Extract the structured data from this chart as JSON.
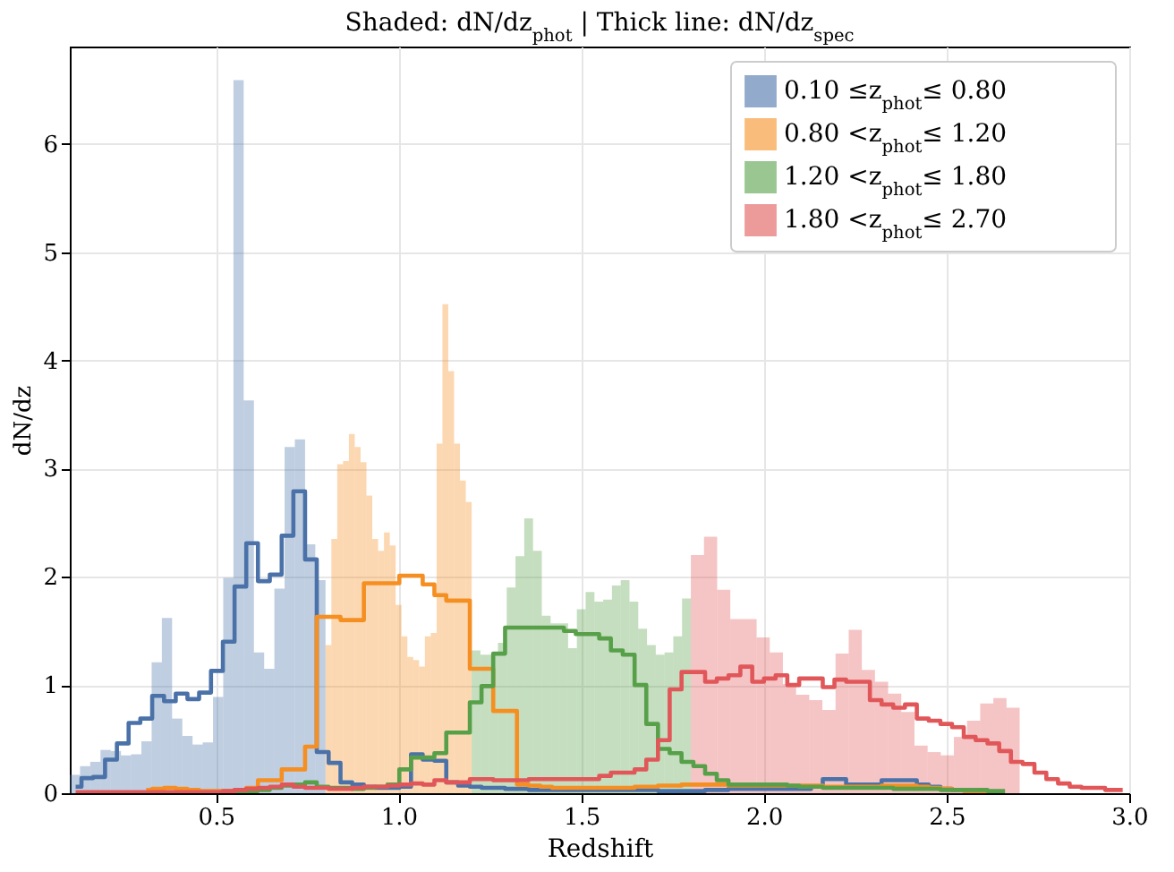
{
  "chart_data": {
    "type": "histogram",
    "title": "Shaded: dN/dz$_{phot}$   |   Thick line: dN/dz$_{spec}$",
    "xlabel": "Redshift",
    "ylabel": "dN/dz",
    "xlim": [
      0.1,
      3.0
    ],
    "xticks": [
      0.5,
      {
        "value": 1,
        "label": "1.0"
      },
      1.5,
      {
        "value": 2,
        "label": "2.0"
      },
      2.5,
      {
        "value": 3,
        "label": "3.0"
      }
    ],
    "ylim": [
      0,
      6.9
    ],
    "yticks": [
      0,
      1,
      2,
      3,
      4,
      5,
      6
    ],
    "grid": true,
    "legend": "top right",
    "x": [
      0.116,
      0.148,
      0.18,
      0.213,
      0.245,
      0.277,
      0.309,
      0.342,
      0.374,
      0.406,
      0.438,
      0.47,
      0.503,
      0.535,
      0.567,
      0.599,
      0.631,
      0.664,
      0.696,
      0.728,
      0.76,
      0.792,
      0.825,
      0.857,
      0.889,
      0.921,
      0.953,
      0.986,
      1.018,
      1.05,
      1.082,
      1.114,
      1.147,
      1.179,
      1.211,
      1.243,
      1.275,
      1.308,
      1.34,
      1.372,
      1.404,
      1.436,
      1.469,
      1.501,
      1.533,
      1.565,
      1.597,
      1.63,
      1.662,
      1.694,
      1.726,
      1.758,
      1.791,
      1.823,
      1.855,
      1.887,
      1.919,
      1.952,
      1.984,
      2.016,
      2.048,
      2.08,
      2.113,
      2.145,
      2.177,
      2.209,
      2.241,
      2.274,
      2.306,
      2.338,
      2.37,
      2.402,
      2.435,
      2.467,
      2.499,
      2.531,
      2.563,
      2.596,
      2.628,
      2.66,
      2.692,
      2.724,
      2.757,
      2.789,
      2.821,
      2.853,
      2.885,
      2.918,
      2.95,
      2.982
    ],
    "series": [
      {
        "name": "0.10 ≤z$_{phot}$≤ 0.80",
        "color": "#4a72a8",
        "bins": [
          0.1,
          0.128,
          0.156,
          0.184,
          0.212,
          0.24,
          0.268,
          0.296,
          0.324,
          0.352,
          0.38,
          0.408,
          0.436,
          0.464,
          0.492,
          0.52,
          0.548,
          0.576,
          0.604,
          0.632,
          0.66,
          0.688,
          0.716,
          0.744,
          0.772,
          0.8
        ],
        "values": [
          0.17,
          0.25,
          0.29,
          0.4,
          0.39,
          0.35,
          0.36,
          0.48,
          1.21,
          1.62,
          0.69,
          0.53,
          0.45,
          0.47,
          0.89,
          1.99,
          6.59,
          3.63,
          1.3,
          1.15,
          1.89,
          3.2,
          3.27,
          2.3,
          1.97
        ]
      },
      {
        "name": "0.80 <z$_{phot}$≤ 1.20",
        "color": "#f58f22",
        "bins": [
          0.8,
          0.816,
          0.832,
          0.848,
          0.864,
          0.88,
          0.896,
          0.912,
          0.928,
          0.944,
          0.96,
          0.976,
          0.992,
          1.008,
          1.024,
          1.04,
          1.056,
          1.072,
          1.088,
          1.104,
          1.12,
          1.136,
          1.152,
          1.168,
          1.184,
          1.2
        ],
        "values": [
          1.37,
          2.35,
          3.04,
          3.07,
          3.32,
          3.2,
          3.06,
          2.75,
          2.35,
          2.24,
          2.41,
          2.29,
          1.74,
          1.45,
          1.26,
          1.23,
          1.17,
          1.45,
          1.48,
          3.23,
          4.52,
          3.9,
          3.23,
          2.89,
          2.69
        ]
      },
      {
        "name": "1.20 <z$_{phot}$≤ 1.80",
        "color": "#57a049",
        "bins": [
          1.2,
          1.224,
          1.248,
          1.272,
          1.296,
          1.32,
          1.344,
          1.368,
          1.392,
          1.416,
          1.44,
          1.464,
          1.488,
          1.512,
          1.536,
          1.56,
          1.584,
          1.608,
          1.632,
          1.656,
          1.68,
          1.704,
          1.728,
          1.752,
          1.776,
          1.8
        ],
        "values": [
          1.32,
          1.28,
          1.28,
          1.39,
          1.9,
          2.19,
          2.54,
          2.24,
          1.64,
          1.57,
          1.57,
          1.34,
          1.7,
          1.86,
          1.77,
          1.79,
          1.92,
          1.97,
          1.77,
          1.52,
          1.37,
          1.28,
          1.3,
          1.45,
          1.8
        ]
      },
      {
        "name": "1.80 <z$_{phot}$≤ 2.70",
        "color": "#e15759",
        "bins": [
          1.8,
          1.836,
          1.872,
          1.908,
          1.944,
          1.98,
          2.016,
          2.052,
          2.088,
          2.124,
          2.16,
          2.196,
          2.232,
          2.268,
          2.304,
          2.34,
          2.376,
          2.412,
          2.448,
          2.484,
          2.52,
          2.556,
          2.592,
          2.628,
          2.664,
          2.7
        ],
        "values": [
          2.2,
          2.37,
          1.88,
          1.61,
          1.61,
          1.44,
          1.3,
          1.01,
          0.91,
          0.86,
          0.77,
          1.29,
          1.51,
          1.14,
          1.03,
          0.92,
          0.75,
          0.44,
          0.38,
          0.35,
          0.52,
          0.67,
          0.83,
          0.88,
          0.79
        ]
      },
      {
        "type": "step",
        "color": "#4a72a8",
        "values": [
          0.06,
          0.14,
          0.15,
          0.31,
          0.46,
          0.65,
          0.69,
          0.9,
          0.85,
          0.92,
          0.87,
          0.93,
          1.13,
          1.4,
          1.91,
          2.31,
          1.96,
          2.02,
          2.38,
          2.79,
          2.16,
          0.38,
          0.28,
          0.1,
          0.08,
          0.06,
          0.05,
          0.05,
          0.06,
          0.36,
          0.31,
          0.3,
          0.1,
          0.07,
          0.06,
          0.05,
          0.05,
          0.04,
          0.04,
          0.03,
          0.03,
          0.03,
          0.03,
          0.03,
          0.03,
          0.03,
          0.03,
          0.03,
          0.03,
          0.03,
          0.02,
          0.02,
          0.02,
          0.02,
          0.03,
          0.03,
          0.04,
          0.04,
          0.04,
          0.04,
          0.04,
          0.04,
          0.04,
          0.06,
          0.13,
          0.13,
          0.08,
          0.08,
          0.08,
          0.12,
          0.12,
          0.12,
          0.08,
          0.06,
          0.04,
          0.03,
          null,
          null,
          null,
          null,
          null,
          null,
          null,
          null,
          null,
          null,
          null,
          null,
          null,
          null
        ]
      },
      {
        "type": "step",
        "color": "#f58f22",
        "values": [
          null,
          null,
          null,
          null,
          null,
          null,
          0.03,
          0.04,
          0.05,
          0.04,
          0.03,
          0.02,
          0.02,
          0.02,
          0.03,
          0.05,
          0.12,
          0.12,
          0.22,
          0.22,
          0.43,
          1.63,
          1.63,
          1.6,
          1.6,
          1.94,
          1.94,
          1.94,
          2.01,
          2.01,
          1.93,
          1.83,
          1.78,
          1.78,
          1.15,
          1.15,
          0.76,
          0.76,
          0.08,
          0.07,
          0.06,
          0.05,
          0.05,
          0.05,
          0.05,
          0.05,
          0.05,
          0.05,
          0.06,
          0.06,
          0.07,
          0.07,
          0.08,
          0.08,
          0.08,
          0.08,
          0.07,
          0.07,
          0.07,
          0.07,
          0.07,
          0.07,
          0.07,
          0.07,
          0.06,
          0.06,
          0.06,
          0.06,
          0.06,
          0.07,
          0.07,
          0.07,
          0.06,
          0.05,
          0.04,
          0.03,
          0.02,
          0.02,
          0.01,
          null,
          null,
          null,
          null,
          null,
          null,
          null,
          null,
          null,
          null,
          null
        ]
      },
      {
        "type": "step",
        "color": "#57a049",
        "values": [
          null,
          null,
          null,
          null,
          null,
          null,
          null,
          null,
          null,
          null,
          null,
          null,
          null,
          0.01,
          0.01,
          0.02,
          0.03,
          0.05,
          0.07,
          0.08,
          0.1,
          0.06,
          0.05,
          0.05,
          0.04,
          0.05,
          0.06,
          0.08,
          0.22,
          0.33,
          0.33,
          0.37,
          0.56,
          0.56,
          0.84,
          0.99,
          1.29,
          1.53,
          1.53,
          1.53,
          1.53,
          1.53,
          1.5,
          1.47,
          1.47,
          1.43,
          1.32,
          1.28,
          1.0,
          0.64,
          0.41,
          0.37,
          0.29,
          0.25,
          0.18,
          0.12,
          0.08,
          0.08,
          0.08,
          0.08,
          0.08,
          0.07,
          0.06,
          0.06,
          0.05,
          0.05,
          0.05,
          0.05,
          0.05,
          0.05,
          0.04,
          0.04,
          0.04,
          0.04,
          0.03,
          0.03,
          0.03,
          0.03,
          0.02,
          0.02,
          null,
          null,
          null,
          null,
          null,
          null,
          null,
          null,
          null,
          null
        ]
      },
      {
        "type": "step",
        "color": "#e15759",
        "values": [
          0.01,
          0.01,
          0.01,
          0.01,
          0.01,
          0.01,
          0.01,
          0.01,
          0.01,
          0.01,
          0.01,
          0.01,
          0.01,
          0.02,
          0.03,
          0.04,
          0.05,
          0.06,
          0.08,
          0.06,
          0.05,
          0.05,
          0.04,
          0.04,
          0.05,
          0.06,
          0.06,
          0.07,
          0.08,
          0.09,
          0.08,
          0.12,
          0.1,
          0.1,
          0.13,
          0.13,
          0.12,
          0.12,
          0.12,
          0.13,
          0.13,
          0.13,
          0.13,
          0.13,
          0.13,
          0.16,
          0.19,
          0.19,
          0.22,
          0.31,
          0.49,
          0.96,
          1.12,
          1.12,
          1.03,
          1.06,
          1.09,
          1.17,
          1.03,
          1.06,
          1.09,
          1.0,
          1.06,
          1.06,
          0.98,
          1.05,
          1.03,
          1.03,
          0.86,
          0.82,
          0.79,
          0.82,
          0.69,
          0.67,
          0.64,
          0.61,
          0.52,
          0.49,
          0.46,
          0.39,
          0.29,
          0.27,
          0.19,
          0.13,
          0.09,
          0.06,
          0.05,
          0.05,
          0.03,
          0.03
        ]
      }
    ]
  }
}
